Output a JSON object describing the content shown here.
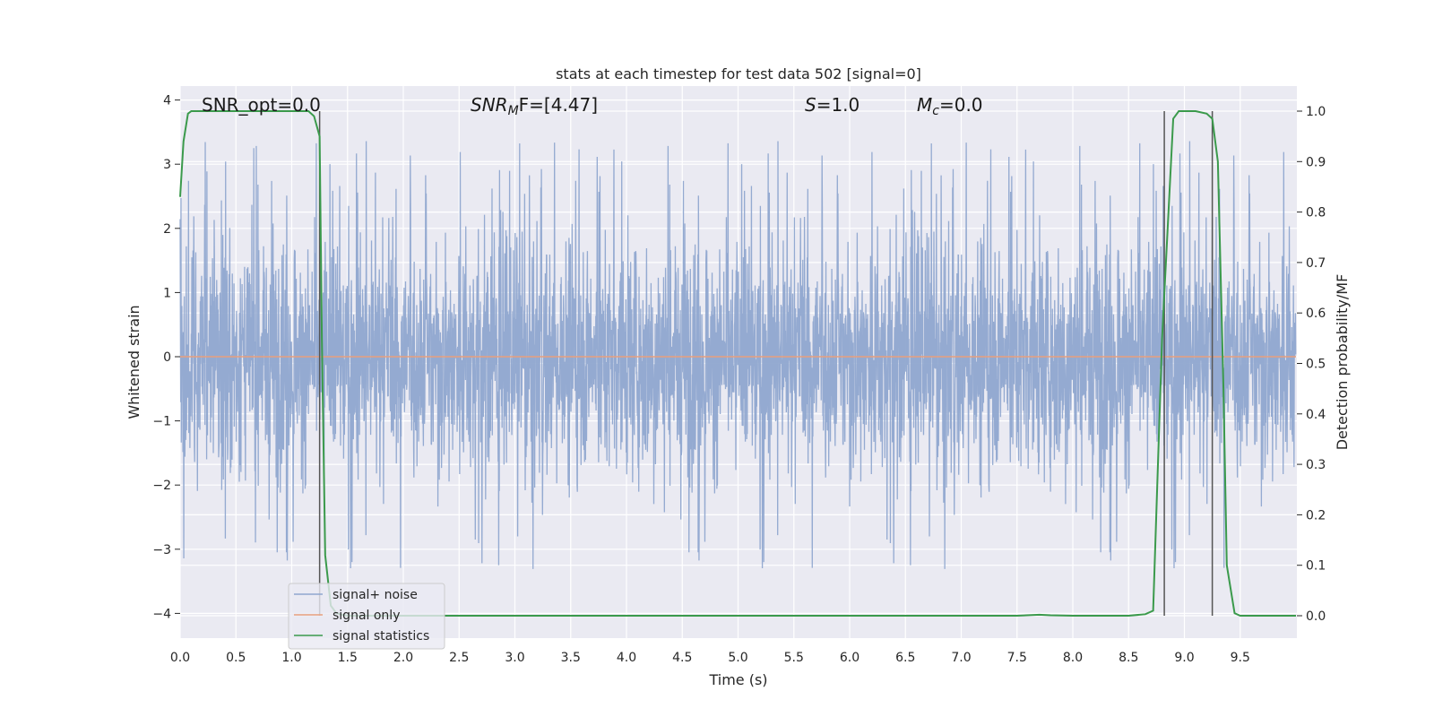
{
  "chart_data": {
    "type": "line",
    "title": "stats at each timestep for test data 502 [signal=0]",
    "xlabel": "Time (s)",
    "ylabel": "Whitened strain",
    "y2label": "Detection probability/MF",
    "xlim": [
      0,
      10
    ],
    "ylim": [
      -4.4,
      4.2
    ],
    "y2lim": [
      -0.048,
      1.048
    ],
    "x_ticks": [
      "0.0",
      "0.5",
      "1.0",
      "1.5",
      "2.0",
      "2.5",
      "3.0",
      "3.5",
      "4.0",
      "4.5",
      "5.0",
      "5.5",
      "6.0",
      "6.5",
      "7.0",
      "7.5",
      "8.0",
      "8.5",
      "9.0",
      "9.5"
    ],
    "y_ticks": [
      "4",
      "3",
      "2",
      "1",
      "0",
      "−1",
      "−2",
      "−3",
      "−4"
    ],
    "y2_ticks": [
      "1.0",
      "0.9",
      "0.8",
      "0.7",
      "0.6",
      "0.5",
      "0.4",
      "0.3",
      "0.2",
      "0.1",
      "0.0"
    ],
    "grid": true,
    "legend_position": "lower-left",
    "annotations": {
      "snr_opt": "SNR_opt=0.0",
      "snr_mf": "SNR",
      "snr_mf_sub": "M",
      "snr_mf_rest": "F=[4.47]",
      "s_label": "S",
      "s_rest": "=1.0",
      "mc_label": "M",
      "mc_sub": "c",
      "mc_rest": "=0.0"
    },
    "series": [
      {
        "name": "signal+ noise",
        "color": "#8fa6cf",
        "axis": "left",
        "noise_envelope": {
          "typical_amplitude": 1.6,
          "max_spike": 4.0,
          "min_spike": -4.0
        }
      },
      {
        "name": "signal only",
        "color": "#e8a07e",
        "axis": "left",
        "x": [
          0,
          10
        ],
        "values": [
          0,
          0
        ]
      },
      {
        "name": "signal statistics",
        "color": "#3b9a4c",
        "axis": "right",
        "x": [
          0,
          0.03,
          0.07,
          0.1,
          0.2,
          0.4,
          0.6,
          0.8,
          1.0,
          1.15,
          1.2,
          1.25,
          1.27,
          1.3,
          1.35,
          1.4,
          1.45,
          1.5,
          2.0,
          3.0,
          4.0,
          5.0,
          6.0,
          7.0,
          7.5,
          7.7,
          7.8,
          8.0,
          8.5,
          8.65,
          8.72,
          8.8,
          8.9,
          8.95,
          9.0,
          9.1,
          9.2,
          9.25,
          9.3,
          9.35,
          9.38,
          9.45,
          9.5,
          9.6,
          10.0
        ],
        "values": [
          0.83,
          0.94,
          0.995,
          1.0,
          1.0,
          1.0,
          1.0,
          1.0,
          1.0,
          1.0,
          0.99,
          0.95,
          0.55,
          0.12,
          0.02,
          0.005,
          0.002,
          0.0,
          0.0,
          0.0,
          0.0,
          0.0,
          0.0,
          0.0,
          0.0,
          0.002,
          0.001,
          0.0,
          0.0,
          0.003,
          0.01,
          0.55,
          0.985,
          1.0,
          1.0,
          1.0,
          0.995,
          0.985,
          0.9,
          0.45,
          0.1,
          0.005,
          0.0,
          0.0,
          0.0
        ]
      }
    ],
    "vertical_markers": [
      1.25,
      8.82,
      9.25
    ],
    "marker_color": "#555555"
  }
}
